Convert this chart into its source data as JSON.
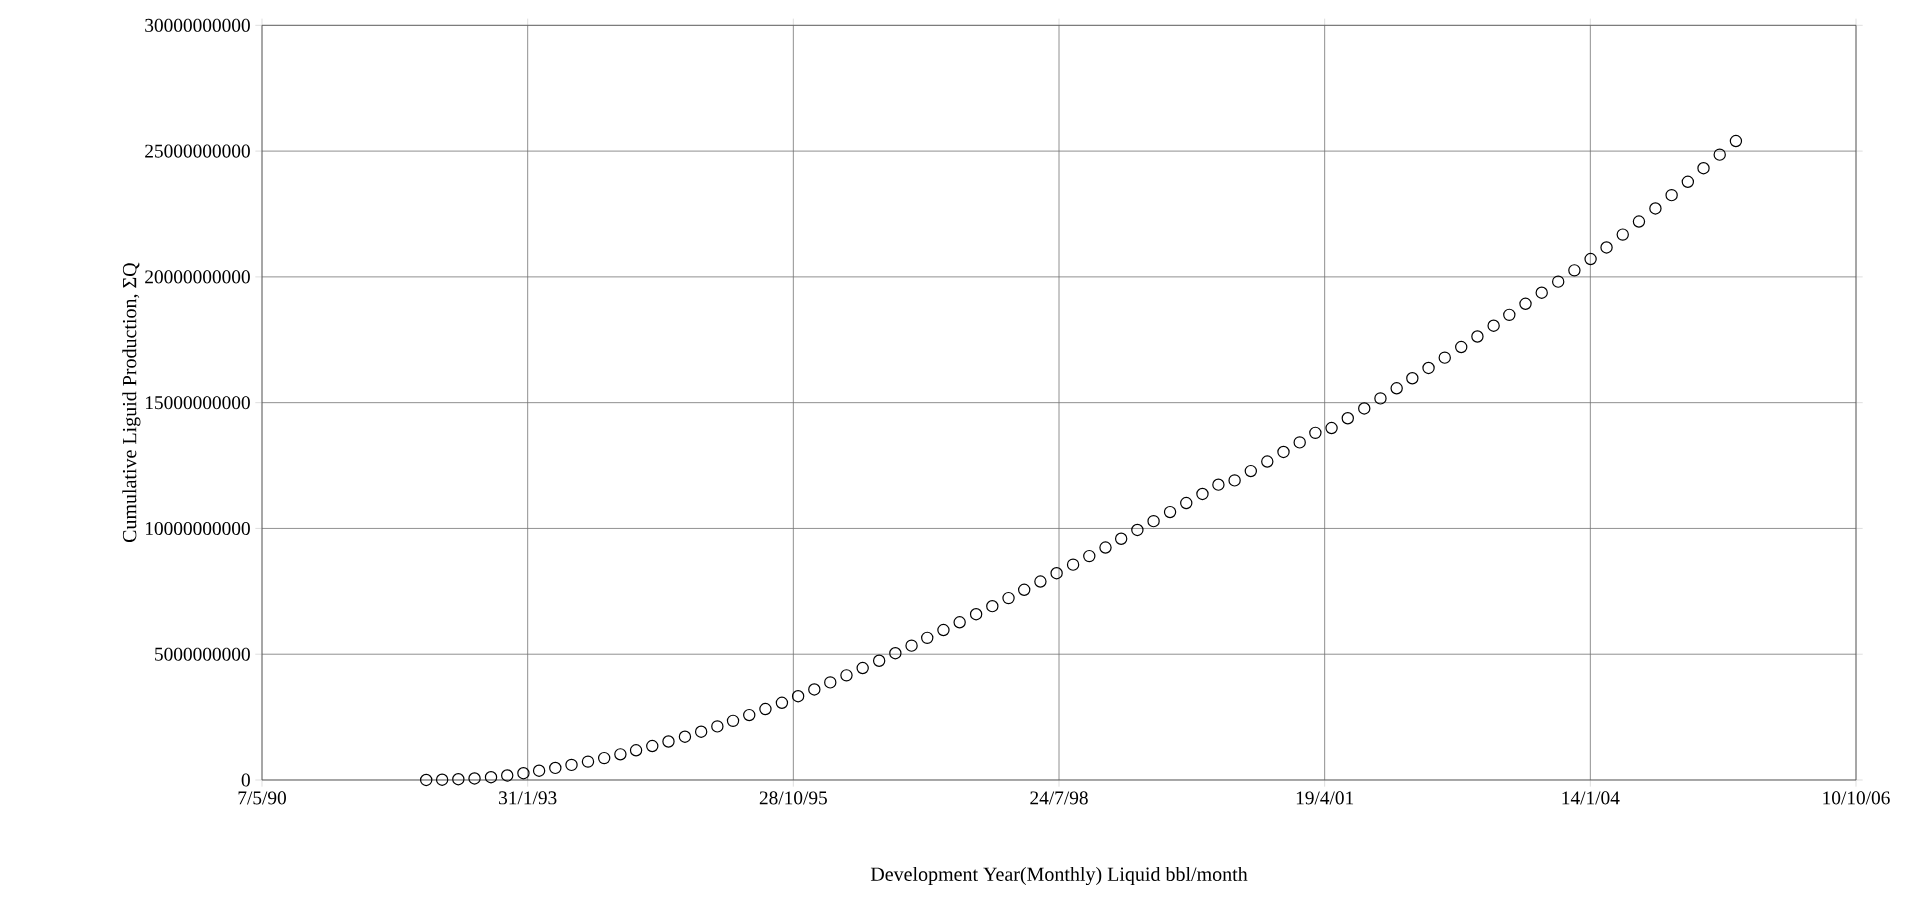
{
  "chart_data": {
    "type": "scatter",
    "xlabel": "Development Year(Monthly) Liquid bbl/month",
    "ylabel": "Cumulative Liguid Production, ΣQ",
    "x": [
      "1992-01",
      "1992-03",
      "1992-05",
      "1992-07",
      "1992-09",
      "1992-11",
      "1993-01",
      "1993-03",
      "1993-05",
      "1993-07",
      "1993-09",
      "1993-11",
      "1994-01",
      "1994-03",
      "1994-05",
      "1994-07",
      "1994-09",
      "1994-11",
      "1995-01",
      "1995-03",
      "1995-05",
      "1995-07",
      "1995-09",
      "1995-11",
      "1996-01",
      "1996-03",
      "1996-05",
      "1996-07",
      "1996-09",
      "1996-11",
      "1997-01",
      "1997-03",
      "1997-05",
      "1997-07",
      "1997-09",
      "1997-11",
      "1998-01",
      "1998-03",
      "1998-05",
      "1998-07",
      "1998-09",
      "1998-11",
      "1999-01",
      "1999-03",
      "1999-05",
      "1999-07",
      "1999-09",
      "1999-11",
      "2000-01",
      "2000-03",
      "2000-05",
      "2000-07",
      "2000-09",
      "2000-11",
      "2001-01",
      "2001-03",
      "2001-05",
      "2001-07",
      "2001-09",
      "2001-11",
      "2002-01",
      "2002-03",
      "2002-05",
      "2002-07",
      "2002-09",
      "2002-11",
      "2003-01",
      "2003-03",
      "2003-05",
      "2003-07",
      "2003-09",
      "2003-11",
      "2004-01",
      "2004-03",
      "2004-05",
      "2004-07",
      "2004-09",
      "2004-11",
      "2005-01",
      "2005-03",
      "2005-05",
      "2005-07"
    ],
    "series": [
      {
        "color": "#000000",
        "values": [
          0,
          10000000,
          30000000,
          60000000,
          110000000,
          180000000,
          270000000,
          370000000,
          480000000,
          600000000,
          730000000,
          870000000,
          1020000000,
          1180000000,
          1350000000,
          1530000000,
          1720000000,
          1920000000,
          2130000000,
          2350000000,
          2580000000,
          2820000000,
          3070000000,
          3330000000,
          3600000000,
          3880000000,
          4160000000,
          4450000000,
          4740000000,
          5040000000,
          5340000000,
          5650000000,
          5960000000,
          6270000000,
          6590000000,
          6910000000,
          7230000000,
          7560000000,
          7890000000,
          8220000000,
          8560000000,
          8900000000,
          9240000000,
          9590000000,
          9940000000,
          10290000000,
          10650000000,
          11010000000,
          11370000000,
          11740000000,
          11910000000,
          12280000000,
          12660000000,
          13040000000,
          13420000000,
          13800000000,
          13990000000,
          14380000000,
          14770000000,
          15170000000,
          15570000000,
          15970000000,
          16380000000,
          16790000000,
          17210000000,
          17630000000,
          18060000000,
          18490000000,
          18930000000,
          19370000000,
          19810000000,
          20260000000,
          20710000000,
          21170000000,
          21680000000,
          22200000000,
          22720000000,
          23250000000,
          23780000000,
          24320000000,
          24860000000,
          25400000000
        ]
      }
    ],
    "xlim": [
      "1990-05-07",
      "2006-10-10"
    ],
    "xticks": [
      {
        "value": "1990-05-07",
        "label": "7/5/90"
      },
      {
        "value": "1993-01-31",
        "label": "31/1/93"
      },
      {
        "value": "1995-10-28",
        "label": "28/10/95"
      },
      {
        "value": "1998-07-24",
        "label": "24/7/98"
      },
      {
        "value": "2001-04-19",
        "label": "19/4/01"
      },
      {
        "value": "2004-01-14",
        "label": "14/1/04"
      },
      {
        "value": "2006-10-10",
        "label": "10/10/06"
      }
    ],
    "ylim": [
      0,
      30000000000
    ],
    "yticks": [
      0,
      5000000000,
      10000000000,
      15000000000,
      20000000000,
      25000000000,
      30000000000
    ],
    "grid": true,
    "marker": "circle"
  }
}
